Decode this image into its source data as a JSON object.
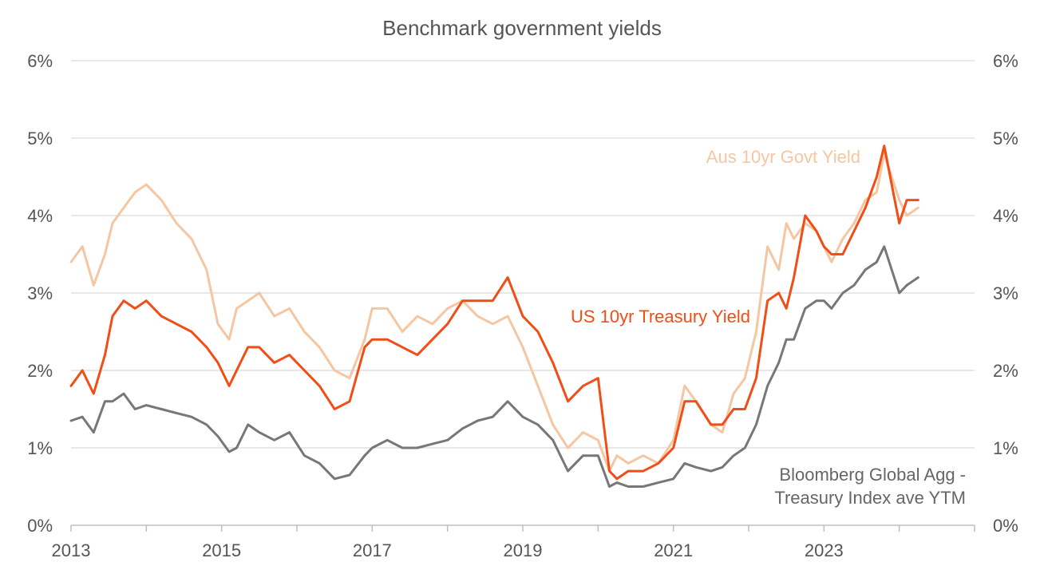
{
  "chart_data": {
    "type": "line",
    "title": "Benchmark government yields",
    "xlabel": "",
    "ylabel": "",
    "xlim": [
      2013,
      2025
    ],
    "ylim": [
      0,
      6
    ],
    "x_ticks": [
      "2013",
      "2015",
      "2017",
      "2019",
      "2021",
      "2023"
    ],
    "x_tick_values": [
      2013,
      2015,
      2017,
      2019,
      2021,
      2023
    ],
    "y_ticks_left": [
      "0%",
      "1%",
      "2%",
      "3%",
      "4%",
      "5%",
      "6%"
    ],
    "y_ticks_right": [
      "0%",
      "1%",
      "2%",
      "3%",
      "4%",
      "5%",
      "6%"
    ],
    "y_tick_values": [
      0,
      1,
      2,
      3,
      4,
      5,
      6
    ],
    "grid": "horizontal",
    "legend": "inline labels",
    "series": [
      {
        "name": "Aus 10yr Govt Yield",
        "color": "#F5C6A2",
        "label_lines": [
          "Aus 10yr Govt Yield"
        ],
        "x": [
          2013.0,
          2013.15,
          2013.3,
          2013.45,
          2013.55,
          2013.7,
          2013.85,
          2014.0,
          2014.2,
          2014.4,
          2014.6,
          2014.8,
          2014.95,
          2015.1,
          2015.2,
          2015.35,
          2015.5,
          2015.7,
          2015.9,
          2016.1,
          2016.3,
          2016.5,
          2016.7,
          2016.9,
          2017.0,
          2017.2,
          2017.4,
          2017.6,
          2017.8,
          2018.0,
          2018.2,
          2018.4,
          2018.6,
          2018.8,
          2019.0,
          2019.2,
          2019.4,
          2019.6,
          2019.8,
          2020.0,
          2020.15,
          2020.25,
          2020.4,
          2020.6,
          2020.8,
          2021.0,
          2021.15,
          2021.3,
          2021.5,
          2021.65,
          2021.8,
          2021.95,
          2022.1,
          2022.25,
          2022.4,
          2022.5,
          2022.6,
          2022.75,
          2022.9,
          2023.0,
          2023.1,
          2023.25,
          2023.4,
          2023.55,
          2023.7,
          2023.8,
          2023.9,
          2024.0,
          2024.1,
          2024.25
        ],
        "values": [
          3.4,
          3.6,
          3.1,
          3.5,
          3.9,
          4.1,
          4.3,
          4.4,
          4.2,
          3.9,
          3.7,
          3.3,
          2.6,
          2.4,
          2.8,
          2.9,
          3.0,
          2.7,
          2.8,
          2.5,
          2.3,
          2.0,
          1.9,
          2.4,
          2.8,
          2.8,
          2.5,
          2.7,
          2.6,
          2.8,
          2.9,
          2.7,
          2.6,
          2.7,
          2.3,
          1.8,
          1.3,
          1.0,
          1.2,
          1.1,
          0.7,
          0.9,
          0.8,
          0.9,
          0.8,
          1.1,
          1.8,
          1.6,
          1.3,
          1.2,
          1.7,
          1.9,
          2.5,
          3.6,
          3.3,
          3.9,
          3.7,
          3.9,
          3.8,
          3.6,
          3.4,
          3.7,
          3.9,
          4.2,
          4.3,
          4.8,
          4.5,
          4.2,
          4.0,
          4.1
        ]
      },
      {
        "name": "US 10yr Treasury Yield",
        "color": "#F04E16",
        "label_lines": [
          "US 10yr Treasury Yield"
        ],
        "x": [
          2013.0,
          2013.15,
          2013.3,
          2013.45,
          2013.55,
          2013.7,
          2013.85,
          2014.0,
          2014.2,
          2014.4,
          2014.6,
          2014.8,
          2014.95,
          2015.1,
          2015.2,
          2015.35,
          2015.5,
          2015.7,
          2015.9,
          2016.1,
          2016.3,
          2016.5,
          2016.7,
          2016.9,
          2017.0,
          2017.2,
          2017.4,
          2017.6,
          2017.8,
          2018.0,
          2018.2,
          2018.4,
          2018.6,
          2018.8,
          2019.0,
          2019.2,
          2019.4,
          2019.6,
          2019.8,
          2020.0,
          2020.15,
          2020.25,
          2020.4,
          2020.6,
          2020.8,
          2021.0,
          2021.15,
          2021.3,
          2021.5,
          2021.65,
          2021.8,
          2021.95,
          2022.1,
          2022.25,
          2022.4,
          2022.5,
          2022.6,
          2022.75,
          2022.9,
          2023.0,
          2023.1,
          2023.25,
          2023.4,
          2023.55,
          2023.7,
          2023.8,
          2023.9,
          2024.0,
          2024.1,
          2024.25
        ],
        "values": [
          1.8,
          2.0,
          1.7,
          2.2,
          2.7,
          2.9,
          2.8,
          2.9,
          2.7,
          2.6,
          2.5,
          2.3,
          2.1,
          1.8,
          2.0,
          2.3,
          2.3,
          2.1,
          2.2,
          2.0,
          1.8,
          1.5,
          1.6,
          2.3,
          2.4,
          2.4,
          2.3,
          2.2,
          2.4,
          2.6,
          2.9,
          2.9,
          2.9,
          3.2,
          2.7,
          2.5,
          2.1,
          1.6,
          1.8,
          1.9,
          0.7,
          0.6,
          0.7,
          0.7,
          0.8,
          1.0,
          1.6,
          1.6,
          1.3,
          1.3,
          1.5,
          1.5,
          1.9,
          2.9,
          3.0,
          2.8,
          3.2,
          4.0,
          3.8,
          3.6,
          3.5,
          3.5,
          3.8,
          4.1,
          4.5,
          4.9,
          4.4,
          3.9,
          4.2,
          4.2
        ]
      },
      {
        "name": "Bloomberg Global Agg - Treasury Index ave YTM",
        "color": "#777777",
        "label_lines": [
          "Bloomberg Global Agg -",
          "Treasury Index ave YTM"
        ],
        "x": [
          2013.0,
          2013.15,
          2013.3,
          2013.45,
          2013.55,
          2013.7,
          2013.85,
          2014.0,
          2014.2,
          2014.4,
          2014.6,
          2014.8,
          2014.95,
          2015.1,
          2015.2,
          2015.35,
          2015.5,
          2015.7,
          2015.9,
          2016.1,
          2016.3,
          2016.5,
          2016.7,
          2016.9,
          2017.0,
          2017.2,
          2017.4,
          2017.6,
          2017.8,
          2018.0,
          2018.2,
          2018.4,
          2018.6,
          2018.8,
          2019.0,
          2019.2,
          2019.4,
          2019.6,
          2019.8,
          2020.0,
          2020.15,
          2020.25,
          2020.4,
          2020.6,
          2020.8,
          2021.0,
          2021.15,
          2021.3,
          2021.5,
          2021.65,
          2021.8,
          2021.95,
          2022.1,
          2022.25,
          2022.4,
          2022.5,
          2022.6,
          2022.75,
          2022.9,
          2023.0,
          2023.1,
          2023.25,
          2023.4,
          2023.55,
          2023.7,
          2023.8,
          2023.9,
          2024.0,
          2024.1,
          2024.25
        ],
        "values": [
          1.35,
          1.4,
          1.2,
          1.6,
          1.6,
          1.7,
          1.5,
          1.55,
          1.5,
          1.45,
          1.4,
          1.3,
          1.15,
          0.95,
          1.0,
          1.3,
          1.2,
          1.1,
          1.2,
          0.9,
          0.8,
          0.6,
          0.65,
          0.9,
          1.0,
          1.1,
          1.0,
          1.0,
          1.05,
          1.1,
          1.25,
          1.35,
          1.4,
          1.6,
          1.4,
          1.3,
          1.1,
          0.7,
          0.9,
          0.9,
          0.5,
          0.55,
          0.5,
          0.5,
          0.55,
          0.6,
          0.8,
          0.75,
          0.7,
          0.75,
          0.9,
          1.0,
          1.3,
          1.8,
          2.1,
          2.4,
          2.4,
          2.8,
          2.9,
          2.9,
          2.8,
          3.0,
          3.1,
          3.3,
          3.4,
          3.6,
          3.3,
          3.0,
          3.1,
          3.2
        ]
      }
    ]
  }
}
